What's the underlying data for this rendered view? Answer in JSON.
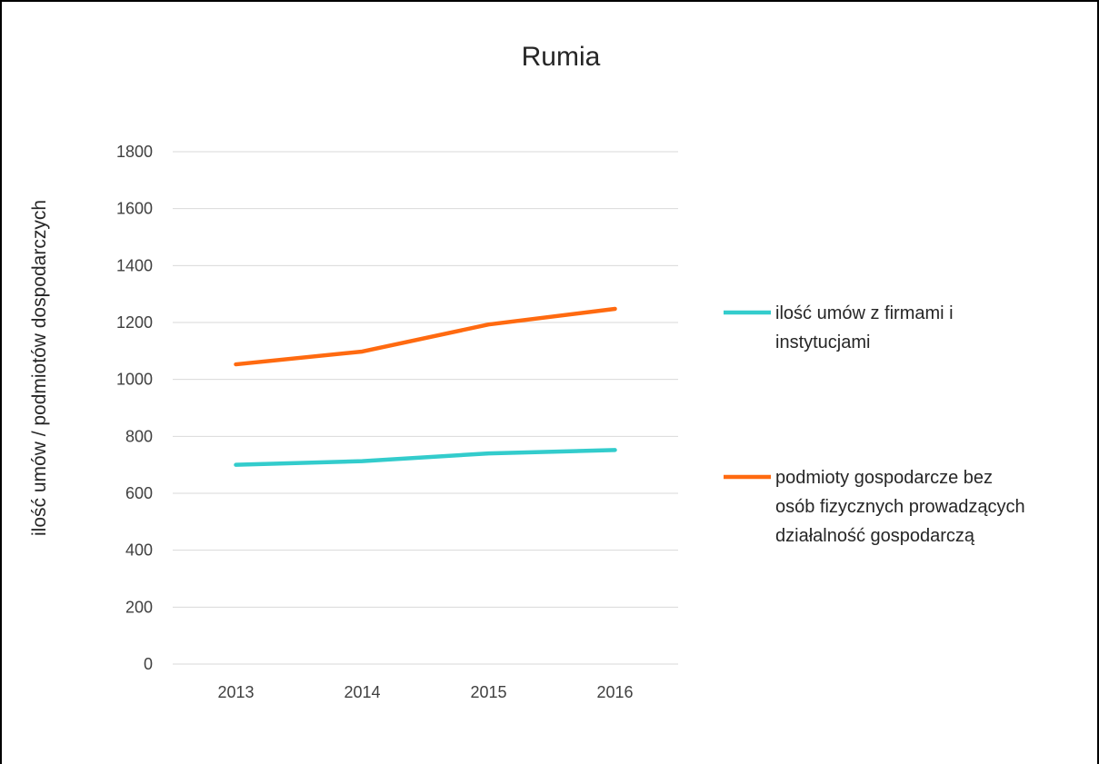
{
  "chart_data": {
    "type": "line",
    "title": "Rumia",
    "xlabel": "",
    "ylabel": "ilość umów / podmiotów dospodarczych",
    "categories": [
      "2013",
      "2014",
      "2015",
      "2016"
    ],
    "ylim": [
      0,
      1800
    ],
    "yticks": [
      0,
      200,
      400,
      600,
      800,
      1000,
      1200,
      1400,
      1600,
      1800
    ],
    "grid": true,
    "legend_position": "right",
    "series": [
      {
        "name": "ilość umów z firmami i instytucjami",
        "name_lines": [
          "ilość umów z firmami i",
          "instytucjami"
        ],
        "color": "#33CCCC",
        "values": [
          700,
          713,
          740,
          752
        ]
      },
      {
        "name": "podmioty gospodarcze bez osób fizycznych prowadzących działalność gospodarczą",
        "name_lines": [
          "podmioty gospodarcze bez",
          "osób fizycznych prowadzących",
          "działalność gospodarczą"
        ],
        "color": "#FF6A10",
        "values": [
          1053,
          1098,
          1193,
          1248
        ]
      }
    ]
  }
}
